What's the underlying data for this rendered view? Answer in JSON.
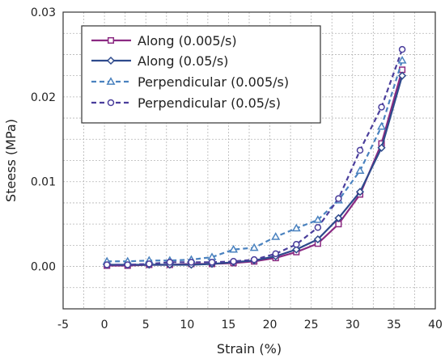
{
  "chart_data": {
    "type": "line",
    "xlabel": "Strain (%)",
    "ylabel": "Steess (MPa)",
    "xlim": [
      -5,
      40
    ],
    "ylim": [
      -0.005,
      0.03
    ],
    "xticks": [
      -5,
      0,
      5,
      10,
      15,
      20,
      25,
      30,
      35,
      40
    ],
    "yticks": [
      0.0,
      0.01,
      0.02,
      0.03
    ],
    "ytick_labels": [
      "0.00",
      "0.01",
      "0.02",
      "0.03"
    ],
    "grid": true,
    "legend_position": "top-left",
    "series": [
      {
        "name": "Along (0.005/s)",
        "color": "#8b2a82",
        "line": "solid",
        "marker": "square",
        "x": [
          0.3,
          2.8,
          5.4,
          7.9,
          10.5,
          13.0,
          15.6,
          18.1,
          20.7,
          23.2,
          25.8,
          28.3,
          30.9,
          33.5,
          36.0
        ],
        "y": [
          0.0001,
          0.0001,
          0.0002,
          0.0002,
          0.0003,
          0.0003,
          0.0004,
          0.0006,
          0.001,
          0.0017,
          0.0027,
          0.005,
          0.0085,
          0.0145,
          0.0232
        ]
      },
      {
        "name": "Along (0.05/s)",
        "color": "#2e4a8c",
        "line": "solid",
        "marker": "diamond",
        "x": [
          0.3,
          2.8,
          5.4,
          7.9,
          10.5,
          13.0,
          15.6,
          18.1,
          20.7,
          23.2,
          25.8,
          28.3,
          30.9,
          33.5,
          36.0
        ],
        "y": [
          0.0002,
          0.0002,
          0.0002,
          0.0002,
          0.0002,
          0.0003,
          0.0005,
          0.0007,
          0.0012,
          0.002,
          0.0032,
          0.0057,
          0.0088,
          0.014,
          0.0225
        ]
      },
      {
        "name": "Perpendicular (0.005/s)",
        "color": "#4a82bf",
        "line": "dashed",
        "marker": "triangle",
        "x": [
          0.3,
          2.8,
          5.4,
          7.9,
          10.5,
          13.0,
          15.6,
          18.1,
          20.7,
          23.2,
          25.8,
          28.3,
          30.9,
          33.5,
          36.0
        ],
        "y": [
          0.0006,
          0.0006,
          0.0007,
          0.0007,
          0.0008,
          0.0011,
          0.002,
          0.0022,
          0.0035,
          0.0045,
          0.0055,
          0.0078,
          0.0113,
          0.0165,
          0.0243
        ]
      },
      {
        "name": "Perpendicular (0.05/s)",
        "color": "#4a3e9c",
        "line": "dashed",
        "marker": "circle",
        "x": [
          0.3,
          2.8,
          5.4,
          7.9,
          10.5,
          13.0,
          15.6,
          18.1,
          20.7,
          23.2,
          25.8,
          28.3,
          30.9,
          33.5,
          36.0
        ],
        "y": [
          0.0002,
          0.0002,
          0.0003,
          0.0005,
          0.0005,
          0.0005,
          0.0006,
          0.0008,
          0.0015,
          0.0026,
          0.0046,
          0.008,
          0.0137,
          0.0188,
          0.0256
        ]
      }
    ]
  }
}
